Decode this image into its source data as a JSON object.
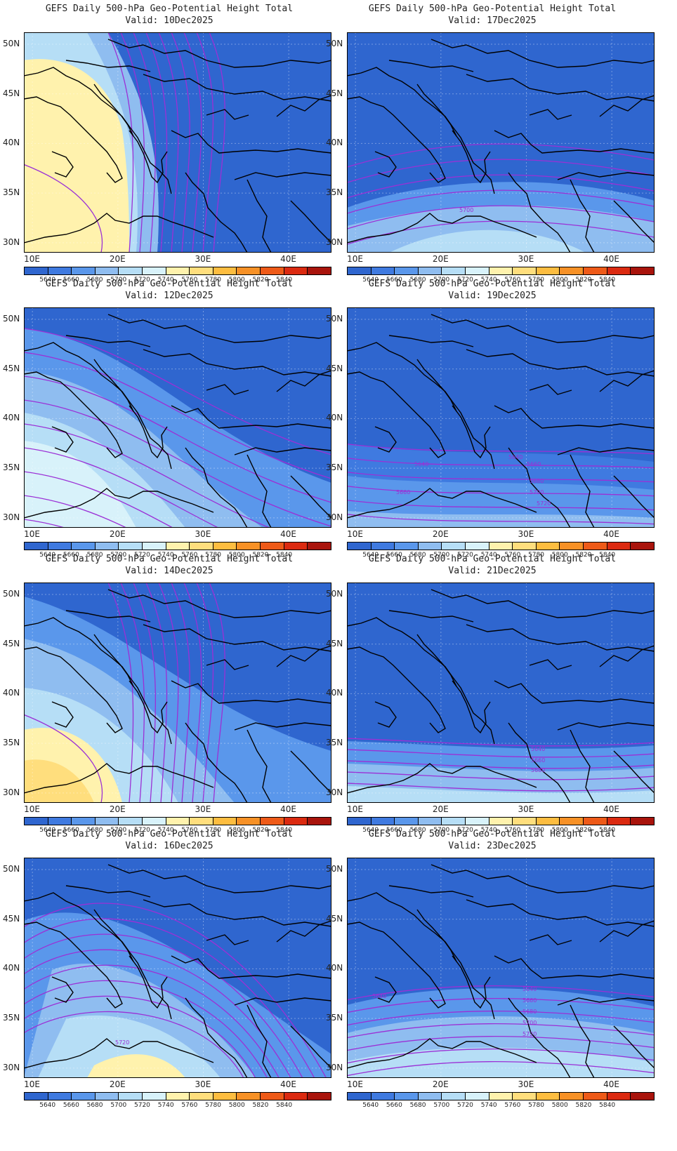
{
  "figure": {
    "title": "GEFS Daily 500-hPa Geo-Potential Height Total",
    "lat_ticks": [
      "50N",
      "45N",
      "40N",
      "35N",
      "30N"
    ],
    "lon_ticks": [
      "10E",
      "20E",
      "30E",
      "40E"
    ],
    "colorbar_levels": [
      "5640",
      "5660",
      "5680",
      "5700",
      "5720",
      "5740",
      "5760",
      "5780",
      "5800",
      "5820",
      "5840"
    ],
    "colorbar_colors": [
      "#2f66cf",
      "#3f7ae0",
      "#5a97eb",
      "#8fbdf0",
      "#b6def6",
      "#d8f2fa",
      "#fff2ad",
      "#ffde7d",
      "#fdbd40",
      "#f79126",
      "#ee5a18",
      "#db2a10",
      "#a9140c"
    ],
    "contour_color": "#9b30d6",
    "base_color": "#2f66cf"
  },
  "panels": [
    {
      "valid": "Valid: 10Dec2025",
      "labels": []
    },
    {
      "valid": "Valid: 17Dec2025",
      "labels": [
        "5700"
      ]
    },
    {
      "valid": "Valid: 12Dec2025",
      "labels": []
    },
    {
      "valid": "Valid: 19Dec2025",
      "labels": [
        "5640",
        "5640",
        "5660",
        "5680",
        "5700",
        "5720",
        "5660"
      ]
    },
    {
      "valid": "Valid: 14Dec2025",
      "labels": []
    },
    {
      "valid": "Valid: 21Dec2025",
      "labels": [
        "5640",
        "5660",
        "5680"
      ]
    },
    {
      "valid": "Valid: 16Dec2025",
      "labels": [
        "5720"
      ]
    },
    {
      "valid": "Valid: 23Dec2025",
      "labels": [
        "5640",
        "5640",
        "5660",
        "5680",
        "5700",
        "5720"
      ]
    }
  ]
}
